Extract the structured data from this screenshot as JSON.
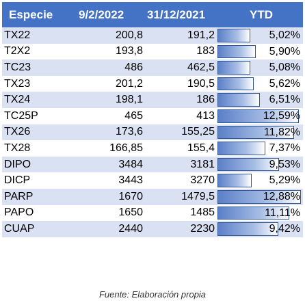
{
  "table": {
    "headers": [
      "Especie",
      "9/2/2022",
      "31/12/2021",
      "YTD"
    ],
    "bar_max_pct": 12.88,
    "rows": [
      {
        "especie": "TX22",
        "v1": "200,8",
        "v2": "191,2",
        "ytd": "5,02%",
        "ytd_value": 5.02
      },
      {
        "especie": "T2X2",
        "v1": "193,8",
        "v2": "183",
        "ytd": "5,90%",
        "ytd_value": 5.9
      },
      {
        "especie": "TC23",
        "v1": "486",
        "v2": "462,5",
        "ytd": "5,08%",
        "ytd_value": 5.08
      },
      {
        "especie": "TX23",
        "v1": "201,2",
        "v2": "190,5",
        "ytd": "5,62%",
        "ytd_value": 5.62
      },
      {
        "especie": "TX24",
        "v1": "198,1",
        "v2": "186",
        "ytd": "6,51%",
        "ytd_value": 6.51
      },
      {
        "especie": "TC25P",
        "v1": "465",
        "v2": "413",
        "ytd": "12,59%",
        "ytd_value": 12.59
      },
      {
        "especie": "TX26",
        "v1": "173,6",
        "v2": "155,25",
        "ytd": "11,82%",
        "ytd_value": 11.82
      },
      {
        "especie": "TX28",
        "v1": "166,85",
        "v2": "155,4",
        "ytd": "7,37%",
        "ytd_value": 7.37
      },
      {
        "especie": "DIPO",
        "v1": "3484",
        "v2": "3181",
        "ytd": "9,53%",
        "ytd_value": 9.53
      },
      {
        "especie": "DICP",
        "v1": "3443",
        "v2": "3270",
        "ytd": "5,29%",
        "ytd_value": 5.29
      },
      {
        "especie": "PARP",
        "v1": "1670",
        "v2": "1479,5",
        "ytd": "12,88%",
        "ytd_value": 12.88
      },
      {
        "especie": "PAPO",
        "v1": "1650",
        "v2": "1485",
        "ytd": "11,11%",
        "ytd_value": 11.11
      },
      {
        "especie": "CUAP",
        "v1": "2440",
        "v2": "2230",
        "ytd": "9,42%",
        "ytd_value": 9.42
      }
    ]
  },
  "source_note": "Fuente: Elaboración propia",
  "colors": {
    "header_bg": "#4472c4",
    "band": "#d9e1f2",
    "bar": "#5b7fc7"
  }
}
